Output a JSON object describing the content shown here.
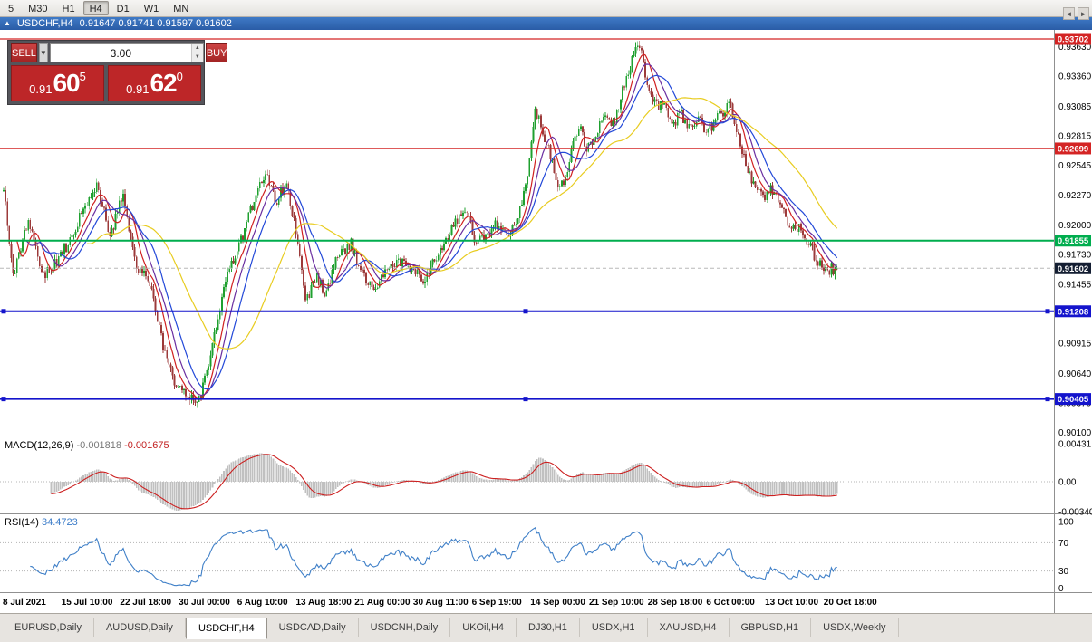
{
  "toolbar": {
    "timeframes": [
      {
        "label": "5",
        "active": false
      },
      {
        "label": "M30",
        "active": false
      },
      {
        "label": "H1",
        "active": false
      },
      {
        "label": "H4",
        "active": true
      },
      {
        "label": "D1",
        "active": false
      },
      {
        "label": "W1",
        "active": false
      },
      {
        "label": "MN",
        "active": false
      }
    ]
  },
  "titlebar": {
    "collapse_icon": "▲",
    "symbol": "USDCHF,H4",
    "ohlc": "0.91647 0.91741 0.91597 0.91602"
  },
  "trade_panel": {
    "sell_label": "SELL",
    "buy_label": "BUY",
    "volume": "3.00",
    "dropdown_icon": "▼",
    "spin_up_icon": "▲",
    "spin_down_icon": "▼",
    "sell_price_prefix": "0.91",
    "sell_price_big": "60",
    "sell_price_sup": "5",
    "buy_price_prefix": "0.91",
    "buy_price_big": "62",
    "buy_price_sup": "0"
  },
  "chart_data": {
    "type": "candlestick",
    "symbol": "USDCHF",
    "timeframe": "H4",
    "current": {
      "open": 0.91647,
      "high": 0.91741,
      "low": 0.91597,
      "close": 0.91602
    },
    "price_axis_labels": [
      "0.93630",
      "0.93360",
      "0.93085",
      "0.92815",
      "0.92545",
      "0.92270",
      "0.92000",
      "0.91730",
      "0.91455",
      "0.91185",
      "0.90915",
      "0.90640",
      "0.90370",
      "0.90100"
    ],
    "levels": [
      {
        "price": 0.93702,
        "label": "0.93702",
        "color": "#d42424",
        "width": 1.3,
        "selected": false
      },
      {
        "price": 0.92699,
        "label": "0.92699",
        "color": "#d42424",
        "width": 1.3,
        "selected": false
      },
      {
        "price": 0.91855,
        "label": "0.91855",
        "color": "#00ad4e",
        "width": 2,
        "selected": false
      },
      {
        "price": 0.91602,
        "label": "0.91602",
        "color": "#b8b8b8",
        "tag_color": "#141e32",
        "width": 1,
        "dashed": true,
        "current": true
      },
      {
        "price": 0.91208,
        "label": "0.91208",
        "color": "#1414cc",
        "width": 2,
        "selected": true
      },
      {
        "price": 0.90405,
        "label": "0.90405",
        "color": "#1414cc",
        "width": 2,
        "selected": true
      }
    ],
    "candle_count": 440,
    "up_color": "#1fa02f",
    "down_color": "#9c3a3a",
    "close_path": [
      [
        0.0,
        0.9232
      ],
      [
        0.012,
        0.9152
      ],
      [
        0.03,
        0.9206
      ],
      [
        0.048,
        0.9152
      ],
      [
        0.065,
        0.9168
      ],
      [
        0.08,
        0.9186
      ],
      [
        0.095,
        0.9214
      ],
      [
        0.112,
        0.9236
      ],
      [
        0.128,
        0.919
      ],
      [
        0.143,
        0.9228
      ],
      [
        0.16,
        0.9162
      ],
      [
        0.175,
        0.915
      ],
      [
        0.19,
        0.9092
      ],
      [
        0.205,
        0.9058
      ],
      [
        0.22,
        0.9042
      ],
      [
        0.235,
        0.9039
      ],
      [
        0.255,
        0.9105
      ],
      [
        0.27,
        0.916
      ],
      [
        0.285,
        0.9186
      ],
      [
        0.3,
        0.9222
      ],
      [
        0.315,
        0.9246
      ],
      [
        0.327,
        0.9222
      ],
      [
        0.34,
        0.924
      ],
      [
        0.352,
        0.9186
      ],
      [
        0.363,
        0.9131
      ],
      [
        0.375,
        0.9152
      ],
      [
        0.387,
        0.9136
      ],
      [
        0.4,
        0.917
      ],
      [
        0.417,
        0.9182
      ],
      [
        0.43,
        0.9155
      ],
      [
        0.445,
        0.9141
      ],
      [
        0.46,
        0.9157
      ],
      [
        0.475,
        0.9166
      ],
      [
        0.49,
        0.9158
      ],
      [
        0.505,
        0.9151
      ],
      [
        0.52,
        0.9172
      ],
      [
        0.535,
        0.9192
      ],
      [
        0.553,
        0.9216
      ],
      [
        0.567,
        0.9181
      ],
      [
        0.582,
        0.9192
      ],
      [
        0.594,
        0.9203
      ],
      [
        0.605,
        0.9186
      ],
      [
        0.617,
        0.9207
      ],
      [
        0.628,
        0.9243
      ],
      [
        0.638,
        0.9306
      ],
      [
        0.648,
        0.9281
      ],
      [
        0.658,
        0.9258
      ],
      [
        0.668,
        0.9231
      ],
      [
        0.678,
        0.9257
      ],
      [
        0.69,
        0.9293
      ],
      [
        0.7,
        0.9271
      ],
      [
        0.712,
        0.9283
      ],
      [
        0.722,
        0.9303
      ],
      [
        0.732,
        0.9289
      ],
      [
        0.742,
        0.9323
      ],
      [
        0.752,
        0.9345
      ],
      [
        0.762,
        0.9367
      ],
      [
        0.772,
        0.9331
      ],
      [
        0.782,
        0.9311
      ],
      [
        0.792,
        0.9307
      ],
      [
        0.802,
        0.9293
      ],
      [
        0.812,
        0.9301
      ],
      [
        0.822,
        0.9291
      ],
      [
        0.832,
        0.9297
      ],
      [
        0.842,
        0.9287
      ],
      [
        0.852,
        0.9293
      ],
      [
        0.862,
        0.9303
      ],
      [
        0.872,
        0.9309
      ],
      [
        0.882,
        0.9279
      ],
      [
        0.892,
        0.9251
      ],
      [
        0.902,
        0.9237
      ],
      [
        0.912,
        0.9227
      ],
      [
        0.922,
        0.9233
      ],
      [
        0.932,
        0.9217
      ],
      [
        0.942,
        0.9201
      ],
      [
        0.952,
        0.9199
      ],
      [
        0.962,
        0.9187
      ],
      [
        0.975,
        0.9169
      ],
      [
        0.988,
        0.9159
      ],
      [
        1.0,
        0.91602
      ]
    ],
    "moving_averages": [
      {
        "period": 8,
        "color": "#d02020"
      },
      {
        "period": 13,
        "color": "#6a2ea0"
      },
      {
        "period": 20,
        "color": "#2248d8"
      },
      {
        "period": 45,
        "color": "#e8cc20"
      }
    ],
    "time_axis_labels": [
      "8 Jul 2021",
      "15 Jul 10:00",
      "22 Jul 18:00",
      "30 Jul 00:00",
      "6 Aug 10:00",
      "13 Aug 18:00",
      "21 Aug 00:00",
      "30 Aug 11:00",
      "6 Sep 19:00",
      "14 Sep 00:00",
      "21 Sep 10:00",
      "28 Sep 18:00",
      "6 Oct 00:00",
      "13 Oct 10:00",
      "20 Oct 18:00"
    ],
    "macd": {
      "name": "MACD(12,26,9)",
      "value_main": "-0.001818",
      "value_signal": "-0.001675",
      "axis_labels": [
        "0.00431",
        "0.00",
        "-0.00340"
      ],
      "histogram_color": "#c0c0c0",
      "signal_color": "#cc2020"
    },
    "rsi": {
      "name": "RSI(14)",
      "value": "34.4723",
      "axis_labels": [
        "100",
        "70",
        "30",
        "0"
      ],
      "guide_levels": [
        70,
        30
      ],
      "color": "#4080c8"
    }
  },
  "tabs": {
    "items": [
      "EURUSD,Daily",
      "AUDUSD,Daily",
      "USDCHF,H4",
      "USDCAD,Daily",
      "USDCNH,Daily",
      "UKOil,H4",
      "DJ30,H1",
      "USDX,H1",
      "XAUUSD,H4",
      "GBPUSD,H1",
      "USDX,Weekly"
    ],
    "active_index": 2,
    "scroll_left_icon": "◄",
    "scroll_right_icon": "►"
  }
}
